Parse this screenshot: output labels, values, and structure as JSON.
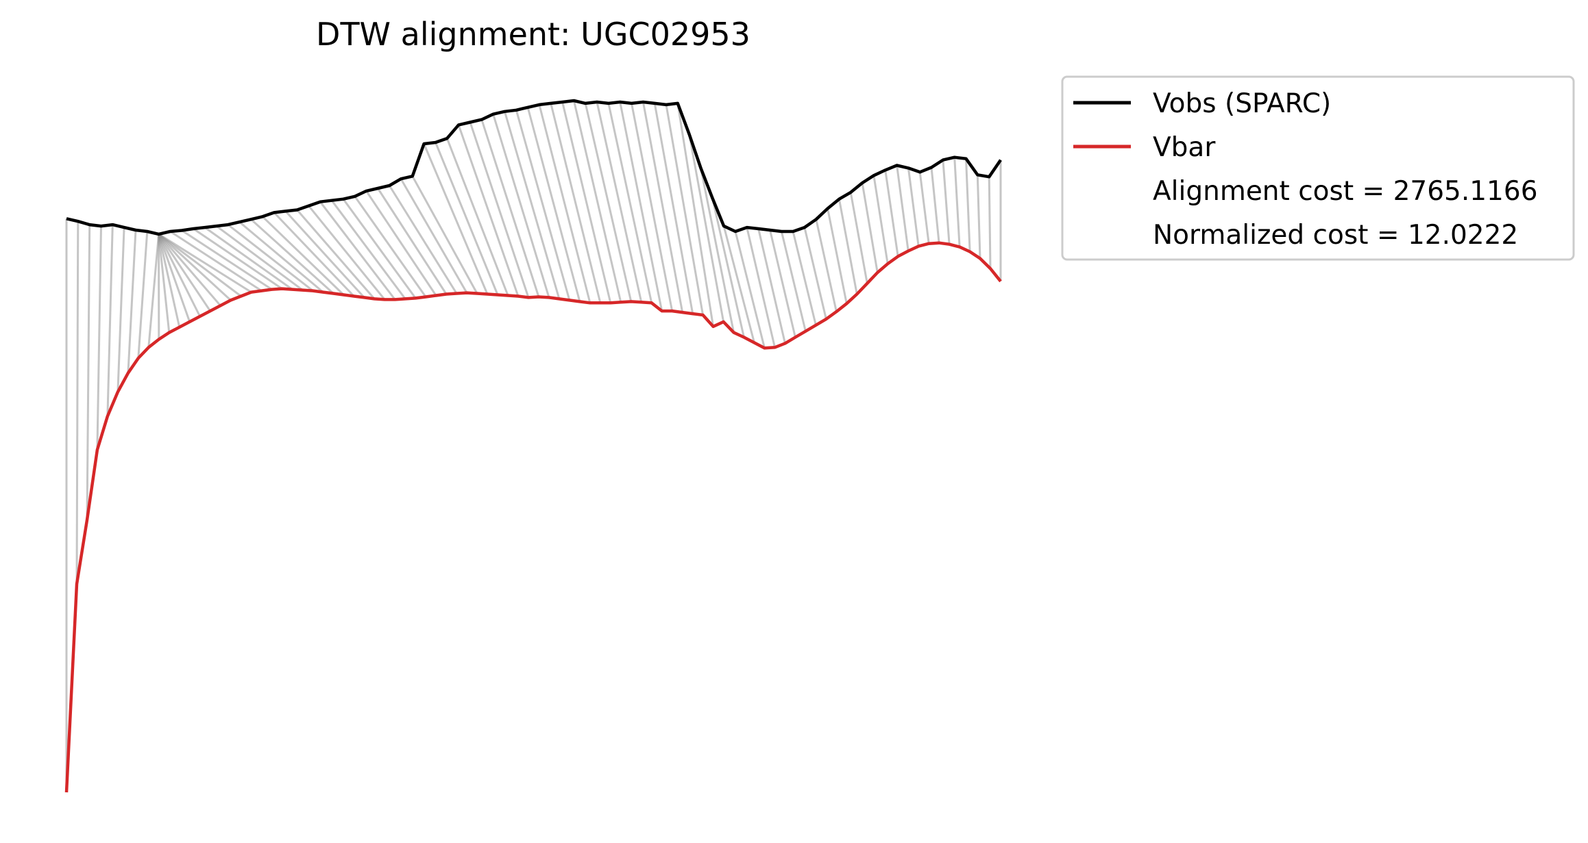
{
  "chart_data": {
    "type": "line",
    "title": "DTW alignment: UGC02953",
    "xlabel": "",
    "ylabel": "",
    "axes_visible": false,
    "grid": false,
    "legend_placement": "outside-upper-right",
    "series": [
      {
        "name": "Vobs (SPARC)",
        "color": "#000000",
        "values": [
          275.4,
          274.6,
          273.6,
          273.2,
          273.6,
          272.8,
          272.0,
          271.6,
          270.8,
          271.6,
          271.9,
          272.4,
          272.8,
          273.2,
          273.6,
          274.4,
          275.2,
          276.0,
          277.2,
          277.6,
          278.0,
          279.2,
          280.4,
          280.8,
          281.2,
          282.0,
          283.6,
          284.4,
          285.2,
          287.2,
          288.0,
          297.6,
          298.0,
          299.2,
          303.2,
          304.0,
          304.8,
          306.4,
          307.2,
          307.6,
          308.4,
          309.2,
          309.6,
          310.0,
          310.4,
          309.6,
          310.0,
          309.6,
          310.0,
          309.6,
          310.0,
          309.6,
          309.2,
          309.6,
          300.4,
          290.4,
          281.6,
          273.2,
          271.6,
          272.8,
          272.4,
          272.0,
          271.6,
          271.6,
          272.8,
          275.2,
          278.4,
          281.2,
          283.2,
          286.0,
          288.2,
          289.8,
          291.2,
          290.4,
          289.2,
          290.6,
          292.8,
          293.6,
          293.2,
          288.4,
          287.8,
          292.8
        ]
      },
      {
        "name": "Vbar",
        "color": "#d62728",
        "values": [
          105.2,
          167.0,
          186.0,
          206.8,
          216.8,
          224.0,
          229.6,
          234.0,
          237.2,
          239.6,
          241.6,
          243.2,
          244.8,
          246.4,
          248.0,
          249.6,
          251.2,
          252.4,
          253.6,
          254.0,
          254.4,
          254.6,
          254.4,
          254.2,
          254.0,
          253.6,
          253.2,
          252.8,
          252.4,
          252.0,
          251.6,
          251.4,
          251.4,
          251.6,
          251.8,
          252.2,
          252.6,
          253.0,
          253.2,
          253.4,
          253.2,
          253.0,
          252.8,
          252.6,
          252.4,
          252.0,
          252.2,
          252.0,
          251.6,
          251.2,
          250.8,
          250.4,
          250.4,
          250.4,
          250.6,
          250.8,
          250.6,
          250.4,
          248.0,
          248.0,
          247.6,
          247.2,
          246.8,
          243.4,
          244.8,
          241.6,
          240.2,
          238.6,
          237.0,
          237.2,
          238.4,
          240.2,
          242.0,
          243.8,
          245.6,
          247.8,
          250.2,
          253.0,
          256.2,
          259.4,
          262.0,
          264.2,
          265.8,
          267.2,
          268.0,
          268.2,
          267.8,
          267.0,
          265.6,
          263.6,
          260.6,
          256.8
        ]
      }
    ],
    "legend_entries": [
      {
        "label": "Vobs (SPARC)",
        "color": "#000000"
      },
      {
        "label": "Vbar",
        "color": "#d62728"
      },
      {
        "label": "Alignment cost = 2765.1166"
      },
      {
        "label": "Normalized cost = 12.0222"
      }
    ],
    "alignment_lines": {
      "color": "#8c8c8c",
      "opacity": 0.5
    }
  }
}
